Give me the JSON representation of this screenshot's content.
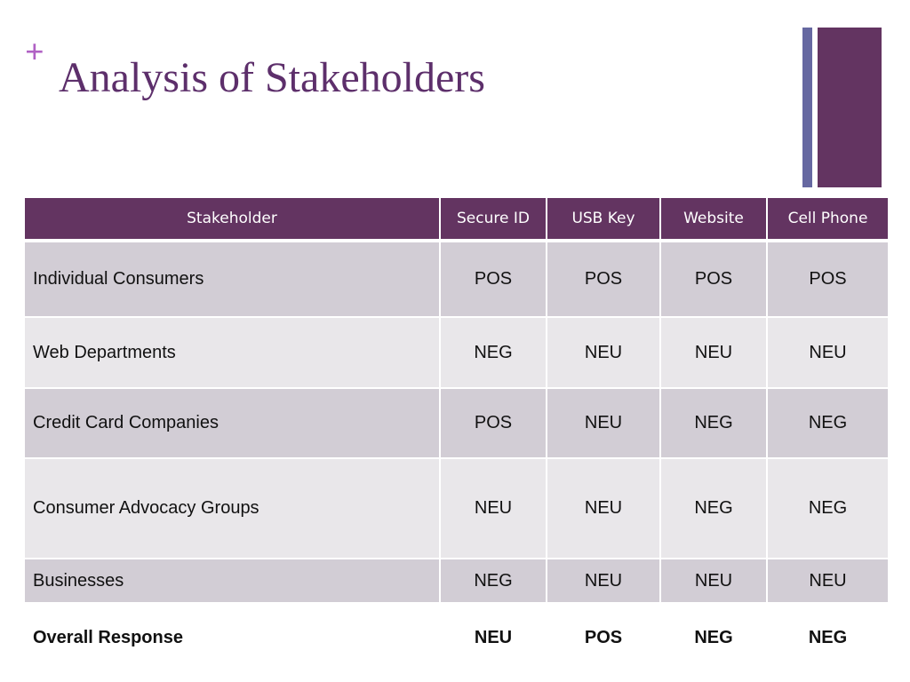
{
  "slide": {
    "plus": "+",
    "title": "Analysis of Stakeholders"
  },
  "colors": {
    "title": "#5d2f6b",
    "plus": "#b061c4",
    "header_bg": "#633461",
    "accent_bar": "#6668a1",
    "pos": "#0f9a16",
    "neg": "#e8141a"
  },
  "table": {
    "headers": [
      "Stakeholder",
      "Secure ID",
      "USB Key",
      "Website",
      "Cell Phone"
    ],
    "rows": [
      {
        "name": "Individual Consumers",
        "values": [
          "POS",
          "POS",
          "POS",
          "POS"
        ]
      },
      {
        "name": "Web Departments",
        "values": [
          "NEG",
          "NEU",
          "NEU",
          "NEU"
        ]
      },
      {
        "name": "Credit Card Companies",
        "values": [
          "POS",
          "NEU",
          "NEG",
          "NEG"
        ]
      },
      {
        "name": "Consumer Advocacy Groups",
        "values": [
          "NEU",
          "NEU",
          "NEG",
          "NEG"
        ]
      },
      {
        "name": "Businesses",
        "values": [
          "NEG",
          "NEU",
          "NEU",
          "NEU"
        ]
      },
      {
        "name": "Overall Response",
        "values": [
          "NEU",
          "POS",
          "NEG",
          "NEG"
        ]
      }
    ]
  }
}
